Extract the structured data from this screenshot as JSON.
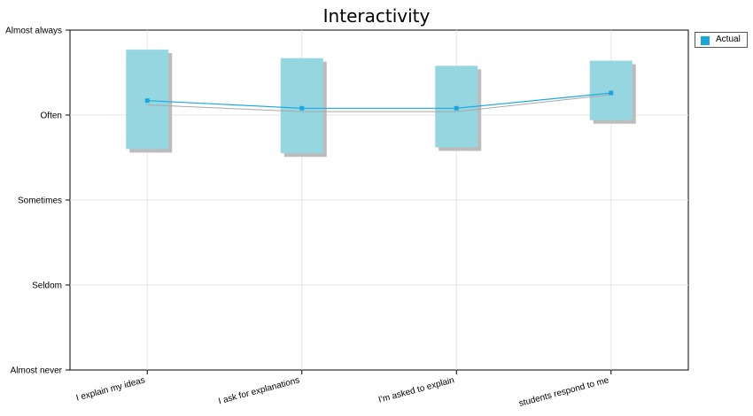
{
  "chart_data": {
    "type": "line",
    "title": "Interactivity",
    "categories": [
      "I explain my ideas",
      "I ask for explanations",
      "I'm asked to explain",
      "students respond to me"
    ],
    "y_ticks": [
      "Almost always",
      "Often",
      "Sometimes",
      "Seldom",
      "Almost never"
    ],
    "ylim": [
      1,
      5
    ],
    "grid": true,
    "legend_position": "top-right",
    "series": [
      {
        "name": "Actual",
        "color": "#1aa7e0",
        "values": [
          4.17,
          4.08,
          4.08,
          4.26
        ],
        "range_low": [
          3.6,
          3.55,
          3.62,
          3.94
        ],
        "range_high": [
          4.77,
          4.67,
          4.58,
          4.64
        ]
      }
    ],
    "secondary_line_values": [
      4.12,
      4.04,
      4.04,
      4.24
    ],
    "box_color": "#96d6e0",
    "shadow_color": "#bcbcbc",
    "secondary_line_color": "#a8a8a8"
  }
}
